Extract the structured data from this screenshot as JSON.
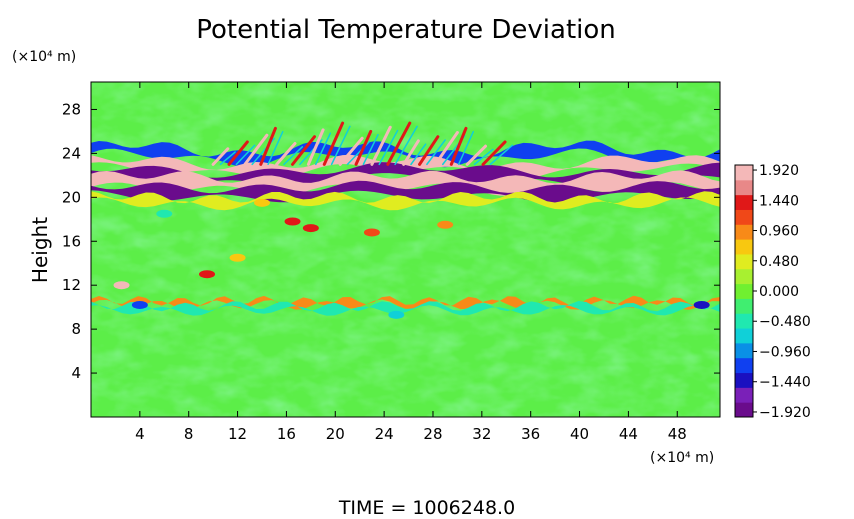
{
  "chart_data": {
    "type": "heatmap",
    "title": "Potential Temperature Deviation",
    "ylabel": "Height",
    "xunit": "(×10⁴ m)",
    "yunit": "(×10⁴ m)",
    "xlim": [
      0,
      51.5
    ],
    "ylim": [
      0,
      30.5
    ],
    "x_ticks": [
      4,
      8,
      12,
      16,
      20,
      24,
      28,
      32,
      36,
      40,
      44,
      48
    ],
    "y_ticks": [
      4,
      8,
      12,
      16,
      20,
      24,
      28
    ],
    "x_tick_labels": [
      "4",
      "8",
      "12",
      "16",
      "20",
      "24",
      "28",
      "32",
      "36",
      "40",
      "44",
      "48"
    ],
    "y_tick_labels": [
      "4",
      "8",
      "12",
      "16",
      "20",
      "24",
      "28"
    ],
    "colorbar": {
      "min": -2.0,
      "max": 2.0,
      "tick_values": [
        1.92,
        1.44,
        0.96,
        0.48,
        0.0,
        -0.48,
        -0.96,
        -1.44,
        -1.92
      ],
      "tick_labels": [
        "1.920",
        "1.440",
        "0.960",
        "0.480",
        "0.000",
        "−0.480",
        "−0.960",
        "−1.440",
        "−1.920"
      ],
      "colors": [
        "#6a0c8c",
        "#7a20b8",
        "#1a10c0",
        "#1040f0",
        "#0a90e6",
        "#10d0d8",
        "#20e8b0",
        "#40ee70",
        "#70f030",
        "#a8f030",
        "#e0ec20",
        "#f8c810",
        "#f88a18",
        "#f04818",
        "#e01818",
        "#e88888",
        "#f4b8b8"
      ]
    },
    "features": [
      {
        "type": "band",
        "name": "strong dipole layer",
        "y_center": 21.2,
        "value": -1.9
      },
      {
        "type": "band",
        "name": "warm layer",
        "y_center": 22.3,
        "value": 1.9
      },
      {
        "type": "band",
        "name": "cold upper layer",
        "y_center": 23.6,
        "value": -1.2
      },
      {
        "type": "band",
        "name": "lower interface",
        "y_center": 10.4,
        "value": 0.8
      },
      {
        "type": "waves",
        "name": "upward gravity waves",
        "x_range": [
          8,
          30
        ],
        "y_range": [
          22,
          27
        ],
        "value": 1.5
      }
    ],
    "footer": "TIME  =  1006248.0"
  }
}
